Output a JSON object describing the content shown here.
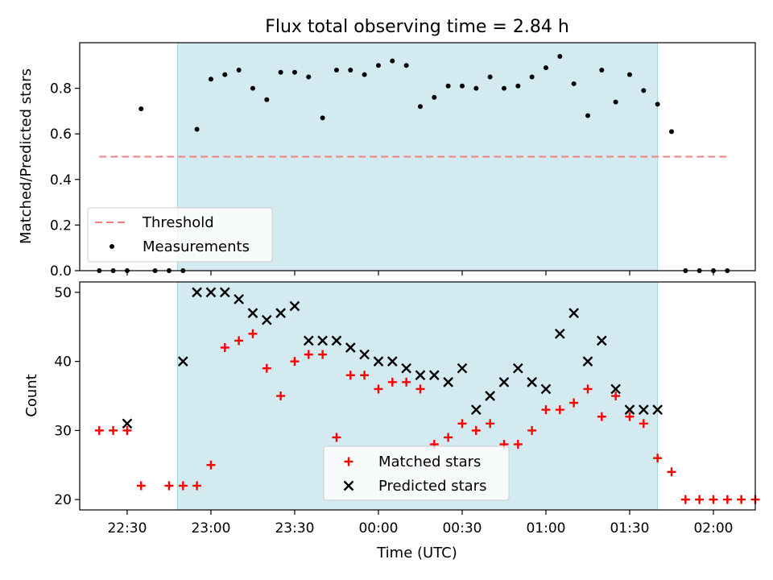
{
  "chart_data": [
    {
      "type": "scatter",
      "title": "Flux total observing time = 2.84 h",
      "xlabel": "",
      "ylabel": "Matched/Predicted stars",
      "ylim": [
        0,
        1.0
      ],
      "yticks": [
        "0.0",
        "0.2",
        "0.4",
        "0.6",
        "0.8"
      ],
      "xlim": [
        "22:13",
        "02:15"
      ],
      "shaded_interval": {
        "start": "22:48",
        "end": "01:40",
        "color": "#d4eaf1"
      },
      "legend": {
        "position": "lower-left",
        "entries": [
          "Threshold",
          "Measurements"
        ]
      },
      "threshold": {
        "name": "Threshold",
        "value": 0.5,
        "x_start": "22:20",
        "x_end": "02:05",
        "color": "#f08080"
      },
      "series": [
        {
          "name": "Measurements",
          "color": "#000000",
          "x": [
            "22:20",
            "22:25",
            "22:30",
            "22:35",
            "22:40",
            "22:45",
            "22:50",
            "22:55",
            "23:00",
            "23:05",
            "23:10",
            "23:15",
            "23:20",
            "23:25",
            "23:30",
            "23:35",
            "23:40",
            "23:45",
            "23:50",
            "23:55",
            "00:00",
            "00:05",
            "00:10",
            "00:15",
            "00:20",
            "00:25",
            "00:30",
            "00:35",
            "00:40",
            "00:45",
            "00:50",
            "00:55",
            "01:00",
            "01:05",
            "01:10",
            "01:15",
            "01:20",
            "01:25",
            "01:30",
            "01:35",
            "01:40",
            "01:45",
            "01:50",
            "01:55",
            "02:00",
            "02:05"
          ],
          "y": [
            0,
            0,
            0,
            0.71,
            0,
            0,
            0,
            0.62,
            0.84,
            0.86,
            0.88,
            0.8,
            0.75,
            0.87,
            0.87,
            0.85,
            0.67,
            0.88,
            0.88,
            0.86,
            0.9,
            0.92,
            0.9,
            0.72,
            0.76,
            0.81,
            0.81,
            0.8,
            0.85,
            0.8,
            0.81,
            0.85,
            0.89,
            0.94,
            0.82,
            0.68,
            0.88,
            0.74,
            0.86,
            0.79,
            0.73,
            0.61,
            0,
            0,
            0,
            0
          ]
        }
      ]
    },
    {
      "type": "scatter",
      "title": "",
      "xlabel": "Time (UTC)",
      "ylabel": "Count",
      "ylim": [
        18.5,
        51.5
      ],
      "yticks": [
        "20",
        "30",
        "40",
        "50"
      ],
      "xticks": [
        "22:30",
        "23:00",
        "23:30",
        "00:00",
        "00:30",
        "01:00",
        "01:30",
        "02:00"
      ],
      "xlim": [
        "22:13",
        "02:15"
      ],
      "shaded_interval": {
        "start": "22:48",
        "end": "01:40",
        "color": "#d4eaf1"
      },
      "legend": {
        "position": "lower-center",
        "entries": [
          "Matched stars",
          "Predicted stars"
        ]
      },
      "series": [
        {
          "name": "Matched stars",
          "marker": "plus",
          "color": "#ff0000",
          "x": [
            "22:20",
            "22:25",
            "22:30",
            "22:35",
            "22:45",
            "22:50",
            "22:55",
            "23:00",
            "23:05",
            "23:10",
            "23:15",
            "23:20",
            "23:25",
            "23:30",
            "23:35",
            "23:40",
            "23:45",
            "23:50",
            "23:55",
            "00:00",
            "00:05",
            "00:10",
            "00:15",
            "00:20",
            "00:25",
            "00:30",
            "00:35",
            "00:40",
            "00:45",
            "00:50",
            "00:55",
            "01:00",
            "01:05",
            "01:10",
            "01:15",
            "01:20",
            "01:25",
            "01:30",
            "01:35",
            "01:40",
            "01:45",
            "01:50",
            "01:55",
            "02:00",
            "02:05",
            "02:10",
            "02:15"
          ],
          "y": [
            30,
            30,
            30,
            22,
            22,
            22,
            22,
            25,
            42,
            43,
            44,
            39,
            35,
            40,
            41,
            41,
            29,
            38,
            38,
            36,
            37,
            37,
            36,
            28,
            29,
            31,
            30,
            31,
            28,
            28,
            30,
            33,
            33,
            34,
            36,
            32,
            35,
            32,
            31,
            26,
            24,
            20,
            20,
            20,
            20,
            20,
            20
          ]
        },
        {
          "name": "Predicted stars",
          "marker": "x",
          "color": "#000000",
          "x": [
            "22:30",
            "22:50",
            "22:55",
            "23:00",
            "23:05",
            "23:10",
            "23:15",
            "23:20",
            "23:25",
            "23:30",
            "23:35",
            "23:40",
            "23:45",
            "23:50",
            "23:55",
            "00:00",
            "00:05",
            "00:10",
            "00:15",
            "00:20",
            "00:25",
            "00:30",
            "00:35",
            "00:40",
            "00:45",
            "00:50",
            "00:55",
            "01:00",
            "01:05",
            "01:10",
            "01:15",
            "01:20",
            "01:25",
            "01:30",
            "01:35",
            "01:40"
          ],
          "y": [
            31,
            40,
            50,
            50,
            50,
            49,
            47,
            46,
            47,
            48,
            43,
            43,
            43,
            42,
            41,
            40,
            40,
            39,
            38,
            38,
            37,
            39,
            33,
            35,
            37,
            39,
            37,
            36,
            44,
            47,
            40,
            43,
            36,
            33,
            33,
            33
          ]
        }
      ]
    }
  ]
}
